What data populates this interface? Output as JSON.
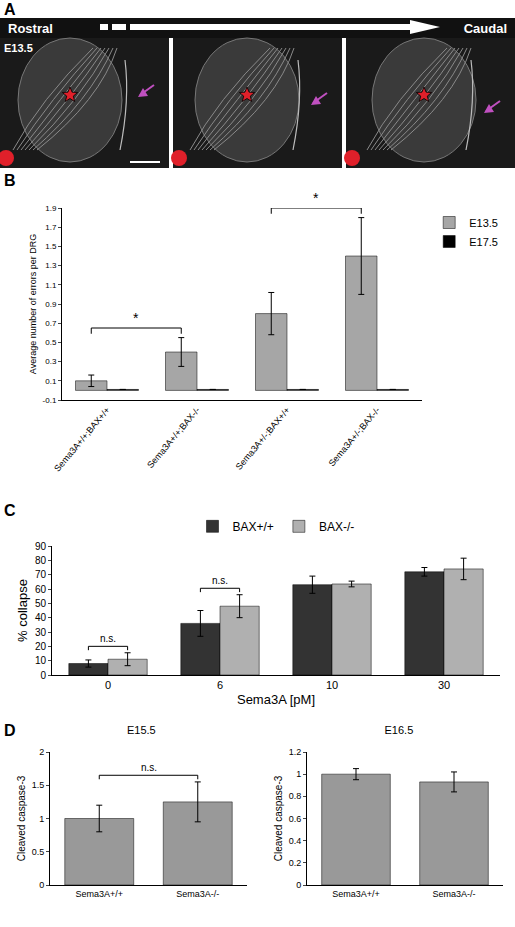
{
  "panel_a": {
    "letter": "A",
    "stage": "E13.5",
    "rostral": "Rostral",
    "caudal": "Caudal"
  },
  "chart_data": [
    {
      "panel": "B",
      "type": "bar",
      "categories": [
        "Sema3A+/+;BAX+/+",
        "Sema3A+/+;BAX-/-",
        "Sema3A+/-;BAX+/+",
        "Sema3A+/-;BAX-/-"
      ],
      "series": [
        {
          "name": "E13.5",
          "color": "#a6a6a6",
          "values": [
            0.1,
            0.4,
            0.8,
            1.4
          ],
          "errors": [
            0.06,
            0.15,
            0.22,
            0.4
          ]
        },
        {
          "name": "E17.5",
          "color": "#000000",
          "values": [
            0.01,
            0.01,
            0.01,
            0.01
          ],
          "errors": [
            0,
            0,
            0,
            0
          ]
        }
      ],
      "y_label": "Average number of errors per DRG",
      "ylim": [
        -0.1,
        1.9
      ],
      "yticks": [
        -0.1,
        0.1,
        0.3,
        0.5,
        0.7,
        0.9,
        1.1,
        1.3,
        1.5,
        1.7,
        1.9
      ],
      "grid": false,
      "legend": "right",
      "brackets": [
        {
          "from": [
            0,
            0
          ],
          "to": [
            1,
            0
          ],
          "label": "*"
        },
        {
          "from": [
            2,
            0
          ],
          "to": [
            3,
            0
          ],
          "label": "*"
        }
      ]
    },
    {
      "panel": "C",
      "type": "bar",
      "categories": [
        "0",
        "6",
        "10",
        "30"
      ],
      "series": [
        {
          "name": "BAX+/+",
          "color": "#333333",
          "values": [
            8,
            36,
            63,
            72
          ],
          "errors": [
            2.5,
            9,
            6,
            3
          ]
        },
        {
          "name": "BAX-/-",
          "color": "#b0b0b0",
          "values": [
            11,
            48,
            63.5,
            74
          ],
          "errors": [
            4.5,
            8,
            2,
            7.5
          ]
        }
      ],
      "x_label": "Sema3A [pM]",
      "y_label": "% collapse",
      "ylim": [
        0,
        90
      ],
      "yticks": [
        0,
        10,
        20,
        30,
        40,
        50,
        60,
        70,
        80,
        90
      ],
      "grid": false,
      "legend": "top",
      "brackets": [
        {
          "from": [
            0,
            0
          ],
          "to": [
            0,
            1
          ],
          "label": "n.s."
        },
        {
          "from": [
            1,
            0
          ],
          "to": [
            1,
            1
          ],
          "label": "n.s."
        }
      ]
    },
    {
      "panel": "D",
      "type": "bar",
      "title": "E15.5",
      "categories": [
        "Sema3A+/+",
        "Sema3A-/-"
      ],
      "series": [
        {
          "name": "E15.5",
          "color": "#999999",
          "values": [
            1.0,
            1.25
          ],
          "errors": [
            0.2,
            0.3
          ]
        }
      ],
      "y_label": "Cleaved caspase-3",
      "ylim": [
        0,
        2
      ],
      "yticks": [
        0,
        0.5,
        1,
        1.5,
        2
      ],
      "grid": false,
      "brackets": [
        {
          "from": [
            0,
            0
          ],
          "to": [
            1,
            0
          ],
          "label": "n.s."
        }
      ]
    },
    {
      "type": "bar",
      "title": "E16.5",
      "categories": [
        "Sema3A+/+",
        "Sema3A-/-"
      ],
      "series": [
        {
          "name": "E16.5",
          "color": "#999999",
          "values": [
            1.0,
            0.93
          ],
          "errors": [
            0.05,
            0.09
          ]
        }
      ],
      "y_label": "Cleaved caspase-3",
      "ylim": [
        0,
        1.2
      ],
      "yticks": [
        0,
        0.2,
        0.4,
        0.6,
        0.8,
        1,
        1.2
      ],
      "grid": false
    }
  ]
}
